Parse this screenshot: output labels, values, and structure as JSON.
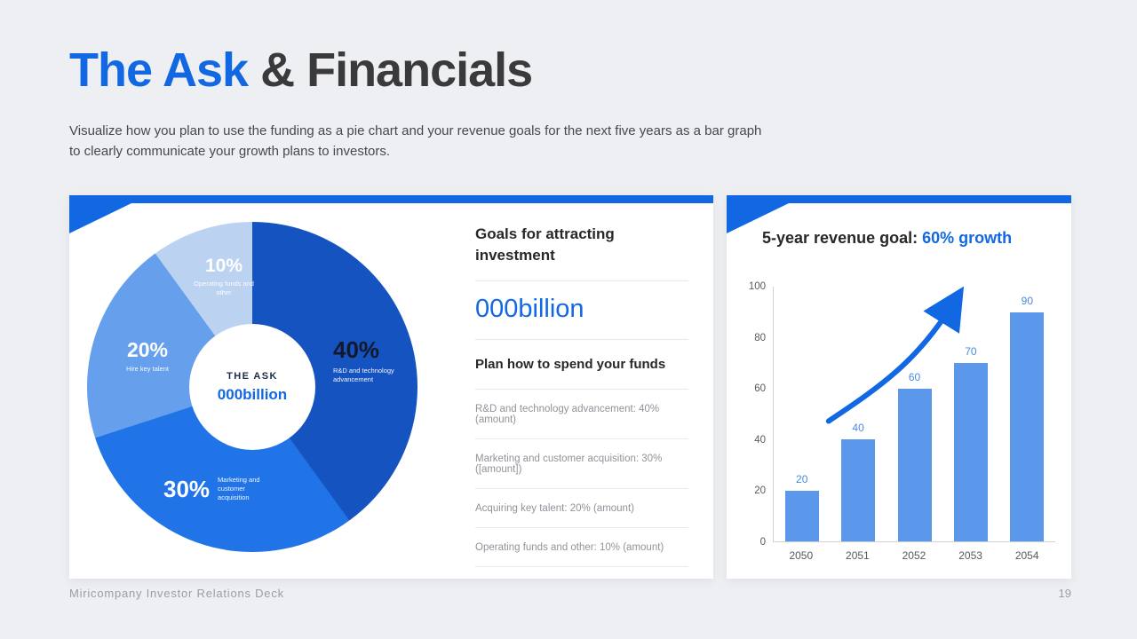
{
  "page": {
    "title_accent": "The Ask",
    "title_rest": "& Financials",
    "subtitle": "Visualize how you plan to use the funding as a pie chart and your revenue goals for the next five years as a bar graph to clearly communicate your growth plans to investors.",
    "footer": "Miricompany Investor Relations Deck",
    "page_number": "19"
  },
  "colors": {
    "accent": "#1268e3",
    "pie": [
      "#1553c0",
      "#2173e8",
      "#66a0ed",
      "#bcd2f1"
    ],
    "bar": "#5b97ea"
  },
  "left_card": {
    "pie_center_label": "THE ASK",
    "pie_center_value": "000billion",
    "segments": [
      {
        "pct": "40%",
        "label": "R&D and technology advancement"
      },
      {
        "pct": "30%",
        "label": "Marketing and customer acquisition"
      },
      {
        "pct": "20%",
        "label": "Hire key talent"
      },
      {
        "pct": "10%",
        "label": "Operating funds and other"
      }
    ],
    "goals_title": "Goals for attracting investment",
    "amount": "000billion",
    "plan_title": "Plan how to spend your funds",
    "plan_items": [
      "R&D and technology advancement: 40% (amount)",
      "Marketing and customer acquisition: 30% ([amount])",
      "Acquiring key talent: 20% (amount)",
      "Operating funds and other: 10% (amount)"
    ]
  },
  "right_card": {
    "title_prefix": "5-year revenue goal: ",
    "title_accent": "60% growth"
  },
  "chart_data": [
    {
      "type": "pie",
      "title": "The Ask – use of funds",
      "labels": [
        "R&D and technology advancement",
        "Marketing and customer acquisition",
        "Hire key talent",
        "Operating funds and other"
      ],
      "values": [
        40,
        30,
        20,
        10
      ],
      "center_label": "THE ASK",
      "center_value": "000billion",
      "legend_position": "on-slice"
    },
    {
      "type": "bar",
      "title": "5-year revenue goal: 60% growth",
      "categories": [
        "2050",
        "2051",
        "2052",
        "2053",
        "2054"
      ],
      "values": [
        20,
        40,
        60,
        70,
        90
      ],
      "xlabel": "",
      "ylabel": "",
      "ylim": [
        0,
        100
      ],
      "yticks": [
        0,
        20,
        40,
        60,
        80,
        100
      ],
      "grid": false,
      "annotations": [
        "upward growth arrow"
      ]
    }
  ]
}
